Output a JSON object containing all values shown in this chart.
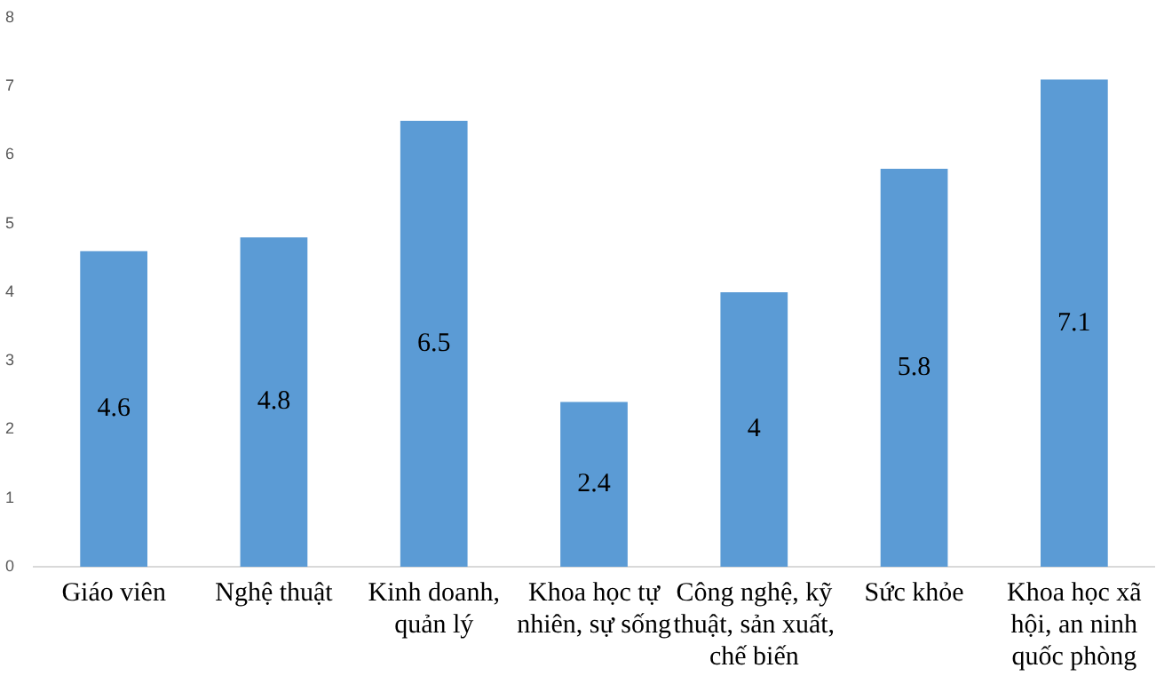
{
  "chart_data": {
    "type": "bar",
    "categories": [
      "Giáo viên",
      "Nghệ thuật",
      "Kinh doanh, quản lý",
      "Khoa học tự nhiên, sự sống",
      "Công nghệ, kỹ thuật, sản xuất, chế biến",
      "Sức khỏe",
      "Khoa học xã hội, an ninh quốc phòng"
    ],
    "values": [
      4.6,
      4.8,
      6.5,
      2.4,
      4,
      5.8,
      7.1
    ],
    "color": "#5b9bd5",
    "ylim": [
      0,
      8
    ],
    "yticks": [
      0,
      1,
      2,
      3,
      4,
      5,
      6,
      7,
      8
    ],
    "grid": false,
    "legend": false,
    "data_labels": true
  }
}
